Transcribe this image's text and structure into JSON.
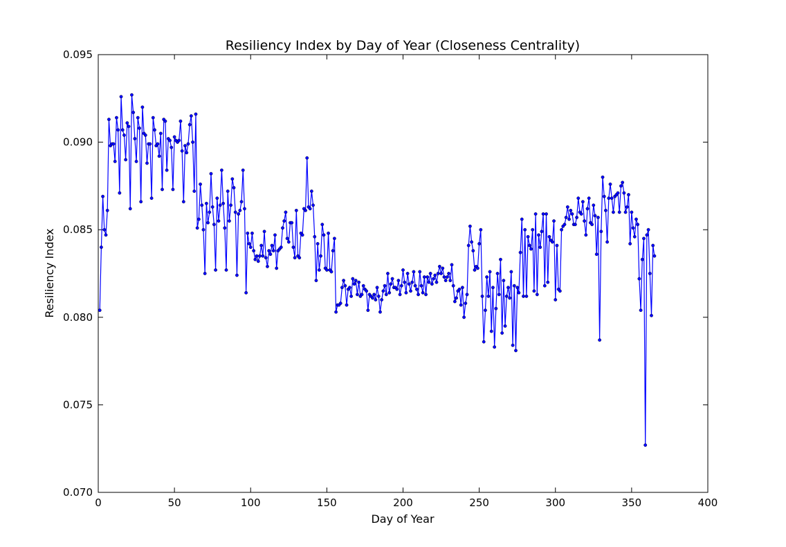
{
  "chart_data": {
    "type": "line",
    "title": "Resiliency Index by Day of Year (Closeness Centrality)",
    "xlabel": "Day of Year",
    "ylabel": "Resiliency Index",
    "xlim": [
      0,
      400
    ],
    "ylim": [
      0.07,
      0.095
    ],
    "xticks": [
      "0",
      "50",
      "100",
      "150",
      "200",
      "250",
      "300",
      "350",
      "400"
    ],
    "yticks": [
      "0.070",
      "0.075",
      "0.080",
      "0.085",
      "0.090",
      "0.095"
    ],
    "grid": false,
    "series_color": "#0000ff",
    "series": [
      {
        "x": [
          1,
          2,
          3,
          4,
          5,
          6,
          7,
          8,
          9,
          10,
          11,
          12,
          13,
          14,
          15,
          16,
          17,
          18,
          19,
          20,
          21,
          22,
          23,
          24,
          25,
          26,
          27,
          28,
          29,
          30,
          31,
          32,
          33,
          34,
          35,
          36,
          37,
          38,
          39,
          40,
          41,
          42,
          43,
          44,
          45,
          46,
          47,
          48,
          49,
          50,
          51,
          52,
          53,
          54,
          55,
          56,
          57,
          58,
          59,
          60,
          61,
          62,
          63,
          64,
          65,
          66,
          67,
          68,
          69,
          70,
          71,
          72,
          73,
          74,
          75,
          76,
          77,
          78,
          79,
          80,
          81,
          82,
          83,
          84,
          85,
          86,
          87,
          88,
          89,
          90,
          91,
          92,
          93,
          94,
          95,
          96,
          97,
          98,
          99,
          100,
          101,
          102,
          103,
          104,
          105,
          106,
          107,
          108,
          109,
          110,
          111,
          112,
          113,
          114,
          115,
          116,
          117,
          118,
          119,
          120,
          121,
          122,
          123,
          124,
          125,
          126,
          127,
          128,
          129,
          130,
          131,
          132,
          133,
          134,
          135,
          136,
          137,
          138,
          139,
          140,
          141,
          142,
          143,
          144,
          145,
          146,
          147,
          148,
          149,
          150,
          151,
          152,
          153,
          154,
          155,
          156,
          157,
          158,
          159,
          160,
          161,
          162,
          163,
          164,
          165,
          166,
          167,
          168,
          169,
          170,
          171,
          172,
          173,
          174,
          175,
          176,
          177,
          178,
          179,
          180,
          181,
          182,
          183,
          184,
          185,
          186,
          187,
          188,
          189,
          190,
          191,
          192,
          193,
          194,
          195,
          196,
          197,
          198,
          199,
          200,
          201,
          202,
          203,
          204,
          205,
          206,
          207,
          208,
          209,
          210,
          211,
          212,
          213,
          214,
          215,
          216,
          217,
          218,
          219,
          220,
          221,
          222,
          223,
          224,
          225,
          226,
          227,
          228,
          229,
          230,
          231,
          232,
          233,
          234,
          235,
          236,
          237,
          238,
          239,
          240,
          241,
          242,
          243,
          244,
          245,
          246,
          247,
          248,
          249,
          250,
          251,
          252,
          253,
          254,
          255,
          256,
          257,
          258,
          259,
          260,
          261,
          262,
          263,
          264,
          265,
          266,
          267,
          268,
          269,
          270,
          271,
          272,
          273,
          274,
          275,
          276,
          277,
          278,
          279,
          280,
          281,
          282,
          283,
          284,
          285,
          286,
          287,
          288,
          289,
          290,
          291,
          292,
          293,
          294,
          295,
          296,
          297,
          298,
          299,
          300,
          301,
          302,
          303,
          304,
          305,
          306,
          307,
          308,
          309,
          310,
          311,
          312,
          313,
          314,
          315,
          316,
          317,
          318,
          319,
          320,
          321,
          322,
          323,
          324,
          325,
          326,
          327,
          328,
          329,
          330,
          331,
          332,
          333,
          334,
          335,
          336,
          337,
          338,
          339,
          340,
          341,
          342,
          343,
          344,
          345,
          346,
          347,
          348,
          349,
          350,
          351,
          352,
          353,
          354,
          355,
          356,
          357,
          358,
          359,
          360,
          361,
          362,
          363,
          364,
          365
        ],
        "y": [
          0.0804,
          0.084,
          0.0869,
          0.085,
          0.0847,
          0.0861,
          0.0913,
          0.0898,
          0.0899,
          0.0899,
          0.0889,
          0.0914,
          0.0907,
          0.0871,
          0.0926,
          0.0907,
          0.0904,
          0.089,
          0.0911,
          0.0909,
          0.0862,
          0.0927,
          0.0917,
          0.0902,
          0.0889,
          0.0914,
          0.0908,
          0.0866,
          0.092,
          0.0905,
          0.0904,
          0.0888,
          0.0899,
          0.0899,
          0.0868,
          0.0914,
          0.0907,
          0.0898,
          0.0899,
          0.0892,
          0.0905,
          0.0873,
          0.0913,
          0.0912,
          0.0884,
          0.0902,
          0.0901,
          0.0897,
          0.0873,
          0.0903,
          0.0901,
          0.09,
          0.0901,
          0.0912,
          0.0895,
          0.0866,
          0.0898,
          0.0894,
          0.0899,
          0.091,
          0.0915,
          0.09,
          0.0872,
          0.0916,
          0.0851,
          0.0856,
          0.0876,
          0.0864,
          0.085,
          0.0825,
          0.0865,
          0.0854,
          0.086,
          0.0882,
          0.0863,
          0.0853,
          0.0827,
          0.0868,
          0.0855,
          0.0864,
          0.0884,
          0.0865,
          0.0851,
          0.0827,
          0.0872,
          0.0855,
          0.0864,
          0.0879,
          0.0874,
          0.086,
          0.0824,
          0.0859,
          0.0861,
          0.0866,
          0.0884,
          0.0862,
          0.0814,
          0.0848,
          0.0842,
          0.084,
          0.0848,
          0.0838,
          0.0833,
          0.0835,
          0.0832,
          0.0835,
          0.0841,
          0.0835,
          0.0849,
          0.0834,
          0.0829,
          0.0838,
          0.0836,
          0.0841,
          0.0838,
          0.0847,
          0.0828,
          0.0838,
          0.0839,
          0.084,
          0.0851,
          0.0855,
          0.086,
          0.0845,
          0.0843,
          0.0854,
          0.0854,
          0.084,
          0.0834,
          0.0861,
          0.0835,
          0.0834,
          0.0848,
          0.0847,
          0.0862,
          0.0861,
          0.0891,
          0.0863,
          0.0862,
          0.0872,
          0.0864,
          0.0846,
          0.0821,
          0.0842,
          0.0827,
          0.0835,
          0.0853,
          0.0847,
          0.0828,
          0.0827,
          0.0848,
          0.0827,
          0.0826,
          0.0838,
          0.0845,
          0.0803,
          0.0807,
          0.0807,
          0.0808,
          0.0817,
          0.0821,
          0.0818,
          0.0807,
          0.0816,
          0.0817,
          0.0812,
          0.0822,
          0.0819,
          0.0821,
          0.0813,
          0.082,
          0.0812,
          0.0813,
          0.0818,
          0.0816,
          0.0815,
          0.0804,
          0.0813,
          0.0812,
          0.0811,
          0.0813,
          0.081,
          0.0817,
          0.0812,
          0.0803,
          0.081,
          0.0815,
          0.0818,
          0.0813,
          0.0825,
          0.0814,
          0.0819,
          0.0822,
          0.0817,
          0.0817,
          0.0816,
          0.0821,
          0.0813,
          0.0818,
          0.0827,
          0.082,
          0.0814,
          0.0825,
          0.0819,
          0.0815,
          0.082,
          0.0826,
          0.0818,
          0.0816,
          0.0813,
          0.0826,
          0.0818,
          0.0814,
          0.0823,
          0.0813,
          0.0823,
          0.082,
          0.0825,
          0.0819,
          0.0822,
          0.0824,
          0.082,
          0.0825,
          0.0829,
          0.0825,
          0.0828,
          0.0823,
          0.0821,
          0.0823,
          0.0825,
          0.0821,
          0.083,
          0.0818,
          0.0809,
          0.0811,
          0.0815,
          0.0816,
          0.0807,
          0.0817,
          0.08,
          0.0808,
          0.0813,
          0.0841,
          0.0852,
          0.0843,
          0.0838,
          0.0827,
          0.0829,
          0.0828,
          0.0842,
          0.085,
          0.0812,
          0.0786,
          0.0804,
          0.0823,
          0.0812,
          0.0826,
          0.0792,
          0.0817,
          0.0783,
          0.0805,
          0.0825,
          0.0813,
          0.0833,
          0.0791,
          0.0821,
          0.0795,
          0.0812,
          0.0817,
          0.0811,
          0.0826,
          0.0784,
          0.0818,
          0.0781,
          0.0817,
          0.0814,
          0.0837,
          0.0856,
          0.0812,
          0.085,
          0.0812,
          0.0846,
          0.0841,
          0.0839,
          0.085,
          0.0815,
          0.0859,
          0.0813,
          0.0847,
          0.084,
          0.0849,
          0.0859,
          0.0818,
          0.0859,
          0.082,
          0.0846,
          0.0844,
          0.0843,
          0.0855,
          0.081,
          0.0841,
          0.0816,
          0.0815,
          0.085,
          0.0852,
          0.0853,
          0.0857,
          0.0863,
          0.0856,
          0.0861,
          0.0859,
          0.0853,
          0.0853,
          0.0857,
          0.0868,
          0.086,
          0.0859,
          0.0866,
          0.0855,
          0.0847,
          0.0862,
          0.0868,
          0.0854,
          0.0853,
          0.0864,
          0.0858,
          0.0836,
          0.0857,
          0.0787,
          0.0849,
          0.088,
          0.0869,
          0.0861,
          0.0843,
          0.0868,
          0.0876,
          0.0868,
          0.086,
          0.0869,
          0.087,
          0.0871,
          0.086,
          0.0875,
          0.0877,
          0.0871,
          0.086,
          0.0863,
          0.087,
          0.0842,
          0.086,
          0.0851,
          0.0846,
          0.0856,
          0.0853,
          0.0822,
          0.0804,
          0.0833,
          0.0845,
          0.0727,
          0.0847,
          0.085,
          0.0825,
          0.0801,
          0.0841,
          0.0835
        ]
      }
    ]
  }
}
